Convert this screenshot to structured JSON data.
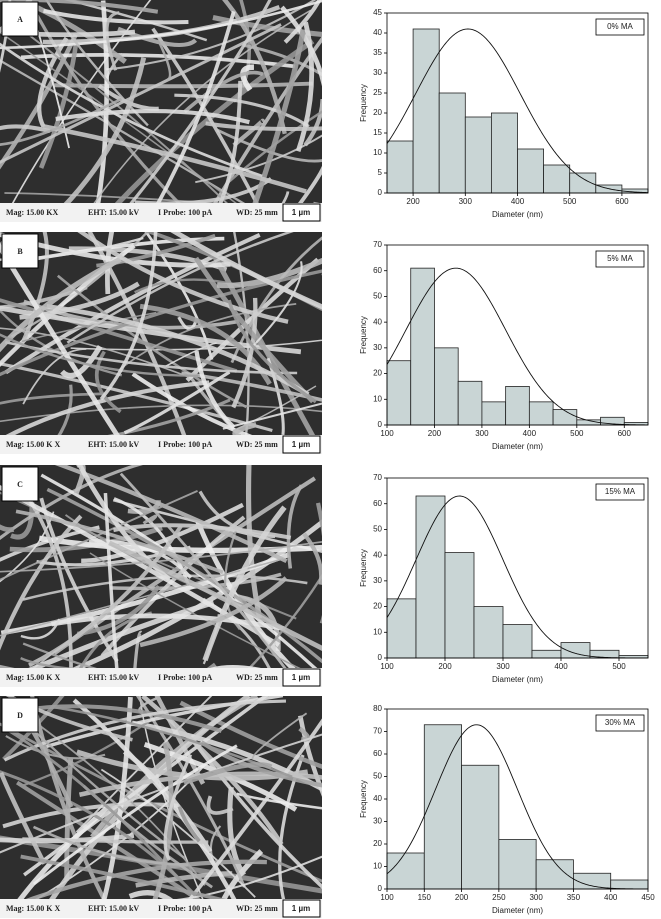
{
  "panels": [
    {
      "letter": "A",
      "sem_caption": [
        "Mag: 15.00 KX",
        "EHT: 15.00 kV",
        "I Probe: 100 pA",
        "WD: 25 mm"
      ],
      "scale": "1 µm"
    },
    {
      "letter": "B",
      "sem_caption": [
        "Mag: 15.00 K X",
        "EHT: 15.00 kV",
        "I Probe: 100 pA",
        "WD: 25 mm"
      ],
      "scale": "1 µm"
    },
    {
      "letter": "C",
      "sem_caption": [
        "Mag: 15.00 K X",
        "EHT: 15.00 kV",
        "I Probe: 100 pA",
        "WD: 25 mm"
      ],
      "scale": "1 µm"
    },
    {
      "letter": "D",
      "sem_caption": [
        "Mag: 15.00 K X",
        "EHT: 15.00 kV",
        "I Probe: 100 pA",
        "WD: 25 mm"
      ],
      "scale": "1 µm"
    }
  ],
  "chart_data": [
    {
      "type": "histogram",
      "label": "0% MA",
      "x_label": "Diameter (nm)",
      "y_label": "Frequency",
      "color": "#c9d5d5",
      "bins": [
        150,
        200,
        250,
        300,
        350,
        400,
        450,
        500,
        550,
        600,
        650
      ],
      "values": [
        13,
        41,
        25,
        19,
        20,
        11,
        7,
        5,
        2,
        1
      ],
      "xlim": [
        150,
        650
      ],
      "xticks": [
        200,
        300,
        400,
        500,
        600
      ],
      "ylim": [
        0,
        45
      ],
      "yticks": [
        0,
        5,
        10,
        15,
        20,
        25,
        30,
        35,
        40,
        45
      ],
      "fit": {
        "mean": 305,
        "sd": 100,
        "peak": 41
      }
    },
    {
      "type": "histogram",
      "label": "5% MA",
      "x_label": "Diameter (nm)",
      "y_label": "Frequency",
      "color": "#c9d5d5",
      "bins": [
        100,
        150,
        200,
        250,
        300,
        350,
        400,
        450,
        500,
        550,
        600,
        650
      ],
      "values": [
        25,
        61,
        30,
        17,
        9,
        15,
        9,
        6,
        2,
        3,
        1
      ],
      "xlim": [
        100,
        650
      ],
      "xticks": [
        100,
        200,
        300,
        400,
        500,
        600
      ],
      "ylim": [
        0,
        70
      ],
      "yticks": [
        0,
        10,
        20,
        30,
        40,
        50,
        60,
        70
      ],
      "fit": {
        "mean": 245,
        "sd": 105,
        "peak": 61
      }
    },
    {
      "type": "histogram",
      "label": "15% MA",
      "x_label": "Diameter (nm)",
      "y_label": "Frequency",
      "color": "#c9d5d5",
      "bins": [
        100,
        150,
        200,
        250,
        300,
        350,
        400,
        450,
        500,
        550
      ],
      "values": [
        23,
        63,
        41,
        20,
        13,
        3,
        6,
        3,
        1
      ],
      "xlim": [
        100,
        550
      ],
      "xticks": [
        100,
        200,
        300,
        400,
        500
      ],
      "ylim": [
        0,
        70
      ],
      "yticks": [
        0,
        10,
        20,
        30,
        40,
        50,
        60,
        70
      ],
      "fit": {
        "mean": 225,
        "sd": 75,
        "peak": 63
      }
    },
    {
      "type": "histogram",
      "label": "30% MA",
      "x_label": "Diameter (nm)",
      "y_label": "Frequency",
      "color": "#c9d5d5",
      "bins": [
        100,
        150,
        200,
        250,
        300,
        350,
        400,
        450
      ],
      "values": [
        16,
        73,
        55,
        22,
        13,
        7,
        4
      ],
      "xlim": [
        100,
        450
      ],
      "xticks": [
        100,
        150,
        200,
        250,
        300,
        350,
        400,
        450
      ],
      "ylim": [
        0,
        80
      ],
      "yticks": [
        0,
        10,
        20,
        30,
        40,
        50,
        60,
        70,
        80
      ],
      "fit": {
        "mean": 220,
        "sd": 55,
        "peak": 73
      }
    }
  ]
}
